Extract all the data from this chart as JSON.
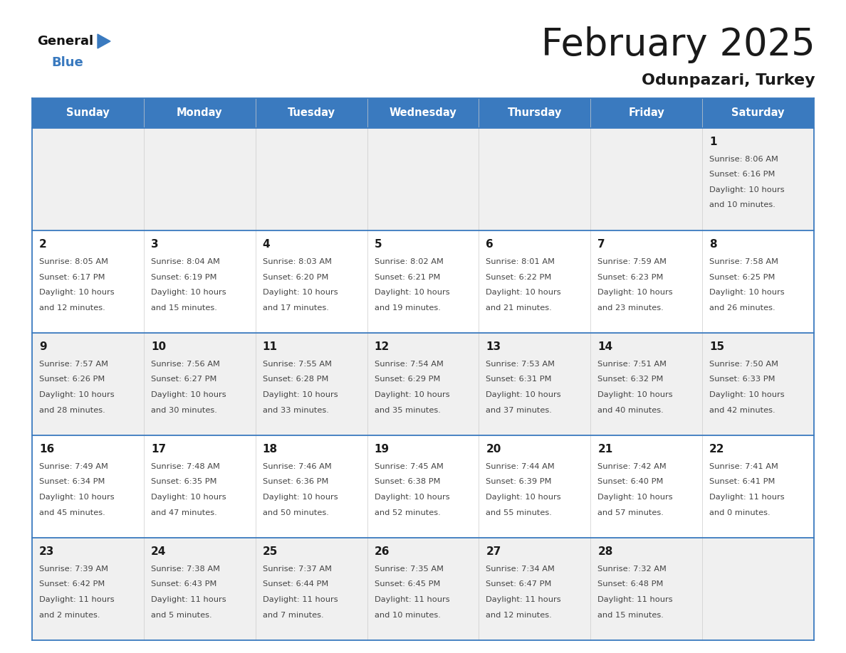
{
  "title": "February 2025",
  "subtitle": "Odunpazari, Turkey",
  "days_of_week": [
    "Sunday",
    "Monday",
    "Tuesday",
    "Wednesday",
    "Thursday",
    "Friday",
    "Saturday"
  ],
  "header_bg": "#3a7abf",
  "header_text": "#ffffff",
  "cell_bg_odd": "#f0f0f0",
  "cell_bg_even": "#ffffff",
  "border_color": "#3a7abf",
  "title_color": "#1a1a1a",
  "subtitle_color": "#1a1a1a",
  "day_num_color": "#1a1a1a",
  "cell_text_color": "#444444",
  "weeks": [
    [
      {
        "date": "",
        "sunrise": "",
        "sunset": "",
        "daylight": ""
      },
      {
        "date": "",
        "sunrise": "",
        "sunset": "",
        "daylight": ""
      },
      {
        "date": "",
        "sunrise": "",
        "sunset": "",
        "daylight": ""
      },
      {
        "date": "",
        "sunrise": "",
        "sunset": "",
        "daylight": ""
      },
      {
        "date": "",
        "sunrise": "",
        "sunset": "",
        "daylight": ""
      },
      {
        "date": "",
        "sunrise": "",
        "sunset": "",
        "daylight": ""
      },
      {
        "date": "1",
        "sunrise": "8:06 AM",
        "sunset": "6:16 PM",
        "daylight": "10 hours\nand 10 minutes."
      }
    ],
    [
      {
        "date": "2",
        "sunrise": "8:05 AM",
        "sunset": "6:17 PM",
        "daylight": "10 hours\nand 12 minutes."
      },
      {
        "date": "3",
        "sunrise": "8:04 AM",
        "sunset": "6:19 PM",
        "daylight": "10 hours\nand 15 minutes."
      },
      {
        "date": "4",
        "sunrise": "8:03 AM",
        "sunset": "6:20 PM",
        "daylight": "10 hours\nand 17 minutes."
      },
      {
        "date": "5",
        "sunrise": "8:02 AM",
        "sunset": "6:21 PM",
        "daylight": "10 hours\nand 19 minutes."
      },
      {
        "date": "6",
        "sunrise": "8:01 AM",
        "sunset": "6:22 PM",
        "daylight": "10 hours\nand 21 minutes."
      },
      {
        "date": "7",
        "sunrise": "7:59 AM",
        "sunset": "6:23 PM",
        "daylight": "10 hours\nand 23 minutes."
      },
      {
        "date": "8",
        "sunrise": "7:58 AM",
        "sunset": "6:25 PM",
        "daylight": "10 hours\nand 26 minutes."
      }
    ],
    [
      {
        "date": "9",
        "sunrise": "7:57 AM",
        "sunset": "6:26 PM",
        "daylight": "10 hours\nand 28 minutes."
      },
      {
        "date": "10",
        "sunrise": "7:56 AM",
        "sunset": "6:27 PM",
        "daylight": "10 hours\nand 30 minutes."
      },
      {
        "date": "11",
        "sunrise": "7:55 AM",
        "sunset": "6:28 PM",
        "daylight": "10 hours\nand 33 minutes."
      },
      {
        "date": "12",
        "sunrise": "7:54 AM",
        "sunset": "6:29 PM",
        "daylight": "10 hours\nand 35 minutes."
      },
      {
        "date": "13",
        "sunrise": "7:53 AM",
        "sunset": "6:31 PM",
        "daylight": "10 hours\nand 37 minutes."
      },
      {
        "date": "14",
        "sunrise": "7:51 AM",
        "sunset": "6:32 PM",
        "daylight": "10 hours\nand 40 minutes."
      },
      {
        "date": "15",
        "sunrise": "7:50 AM",
        "sunset": "6:33 PM",
        "daylight": "10 hours\nand 42 minutes."
      }
    ],
    [
      {
        "date": "16",
        "sunrise": "7:49 AM",
        "sunset": "6:34 PM",
        "daylight": "10 hours\nand 45 minutes."
      },
      {
        "date": "17",
        "sunrise": "7:48 AM",
        "sunset": "6:35 PM",
        "daylight": "10 hours\nand 47 minutes."
      },
      {
        "date": "18",
        "sunrise": "7:46 AM",
        "sunset": "6:36 PM",
        "daylight": "10 hours\nand 50 minutes."
      },
      {
        "date": "19",
        "sunrise": "7:45 AM",
        "sunset": "6:38 PM",
        "daylight": "10 hours\nand 52 minutes."
      },
      {
        "date": "20",
        "sunrise": "7:44 AM",
        "sunset": "6:39 PM",
        "daylight": "10 hours\nand 55 minutes."
      },
      {
        "date": "21",
        "sunrise": "7:42 AM",
        "sunset": "6:40 PM",
        "daylight": "10 hours\nand 57 minutes."
      },
      {
        "date": "22",
        "sunrise": "7:41 AM",
        "sunset": "6:41 PM",
        "daylight": "11 hours\nand 0 minutes."
      }
    ],
    [
      {
        "date": "23",
        "sunrise": "7:39 AM",
        "sunset": "6:42 PM",
        "daylight": "11 hours\nand 2 minutes."
      },
      {
        "date": "24",
        "sunrise": "7:38 AM",
        "sunset": "6:43 PM",
        "daylight": "11 hours\nand 5 minutes."
      },
      {
        "date": "25",
        "sunrise": "7:37 AM",
        "sunset": "6:44 PM",
        "daylight": "11 hours\nand 7 minutes."
      },
      {
        "date": "26",
        "sunrise": "7:35 AM",
        "sunset": "6:45 PM",
        "daylight": "11 hours\nand 10 minutes."
      },
      {
        "date": "27",
        "sunrise": "7:34 AM",
        "sunset": "6:47 PM",
        "daylight": "11 hours\nand 12 minutes."
      },
      {
        "date": "28",
        "sunrise": "7:32 AM",
        "sunset": "6:48 PM",
        "daylight": "11 hours\nand 15 minutes."
      },
      {
        "date": "",
        "sunrise": "",
        "sunset": "",
        "daylight": ""
      }
    ]
  ]
}
